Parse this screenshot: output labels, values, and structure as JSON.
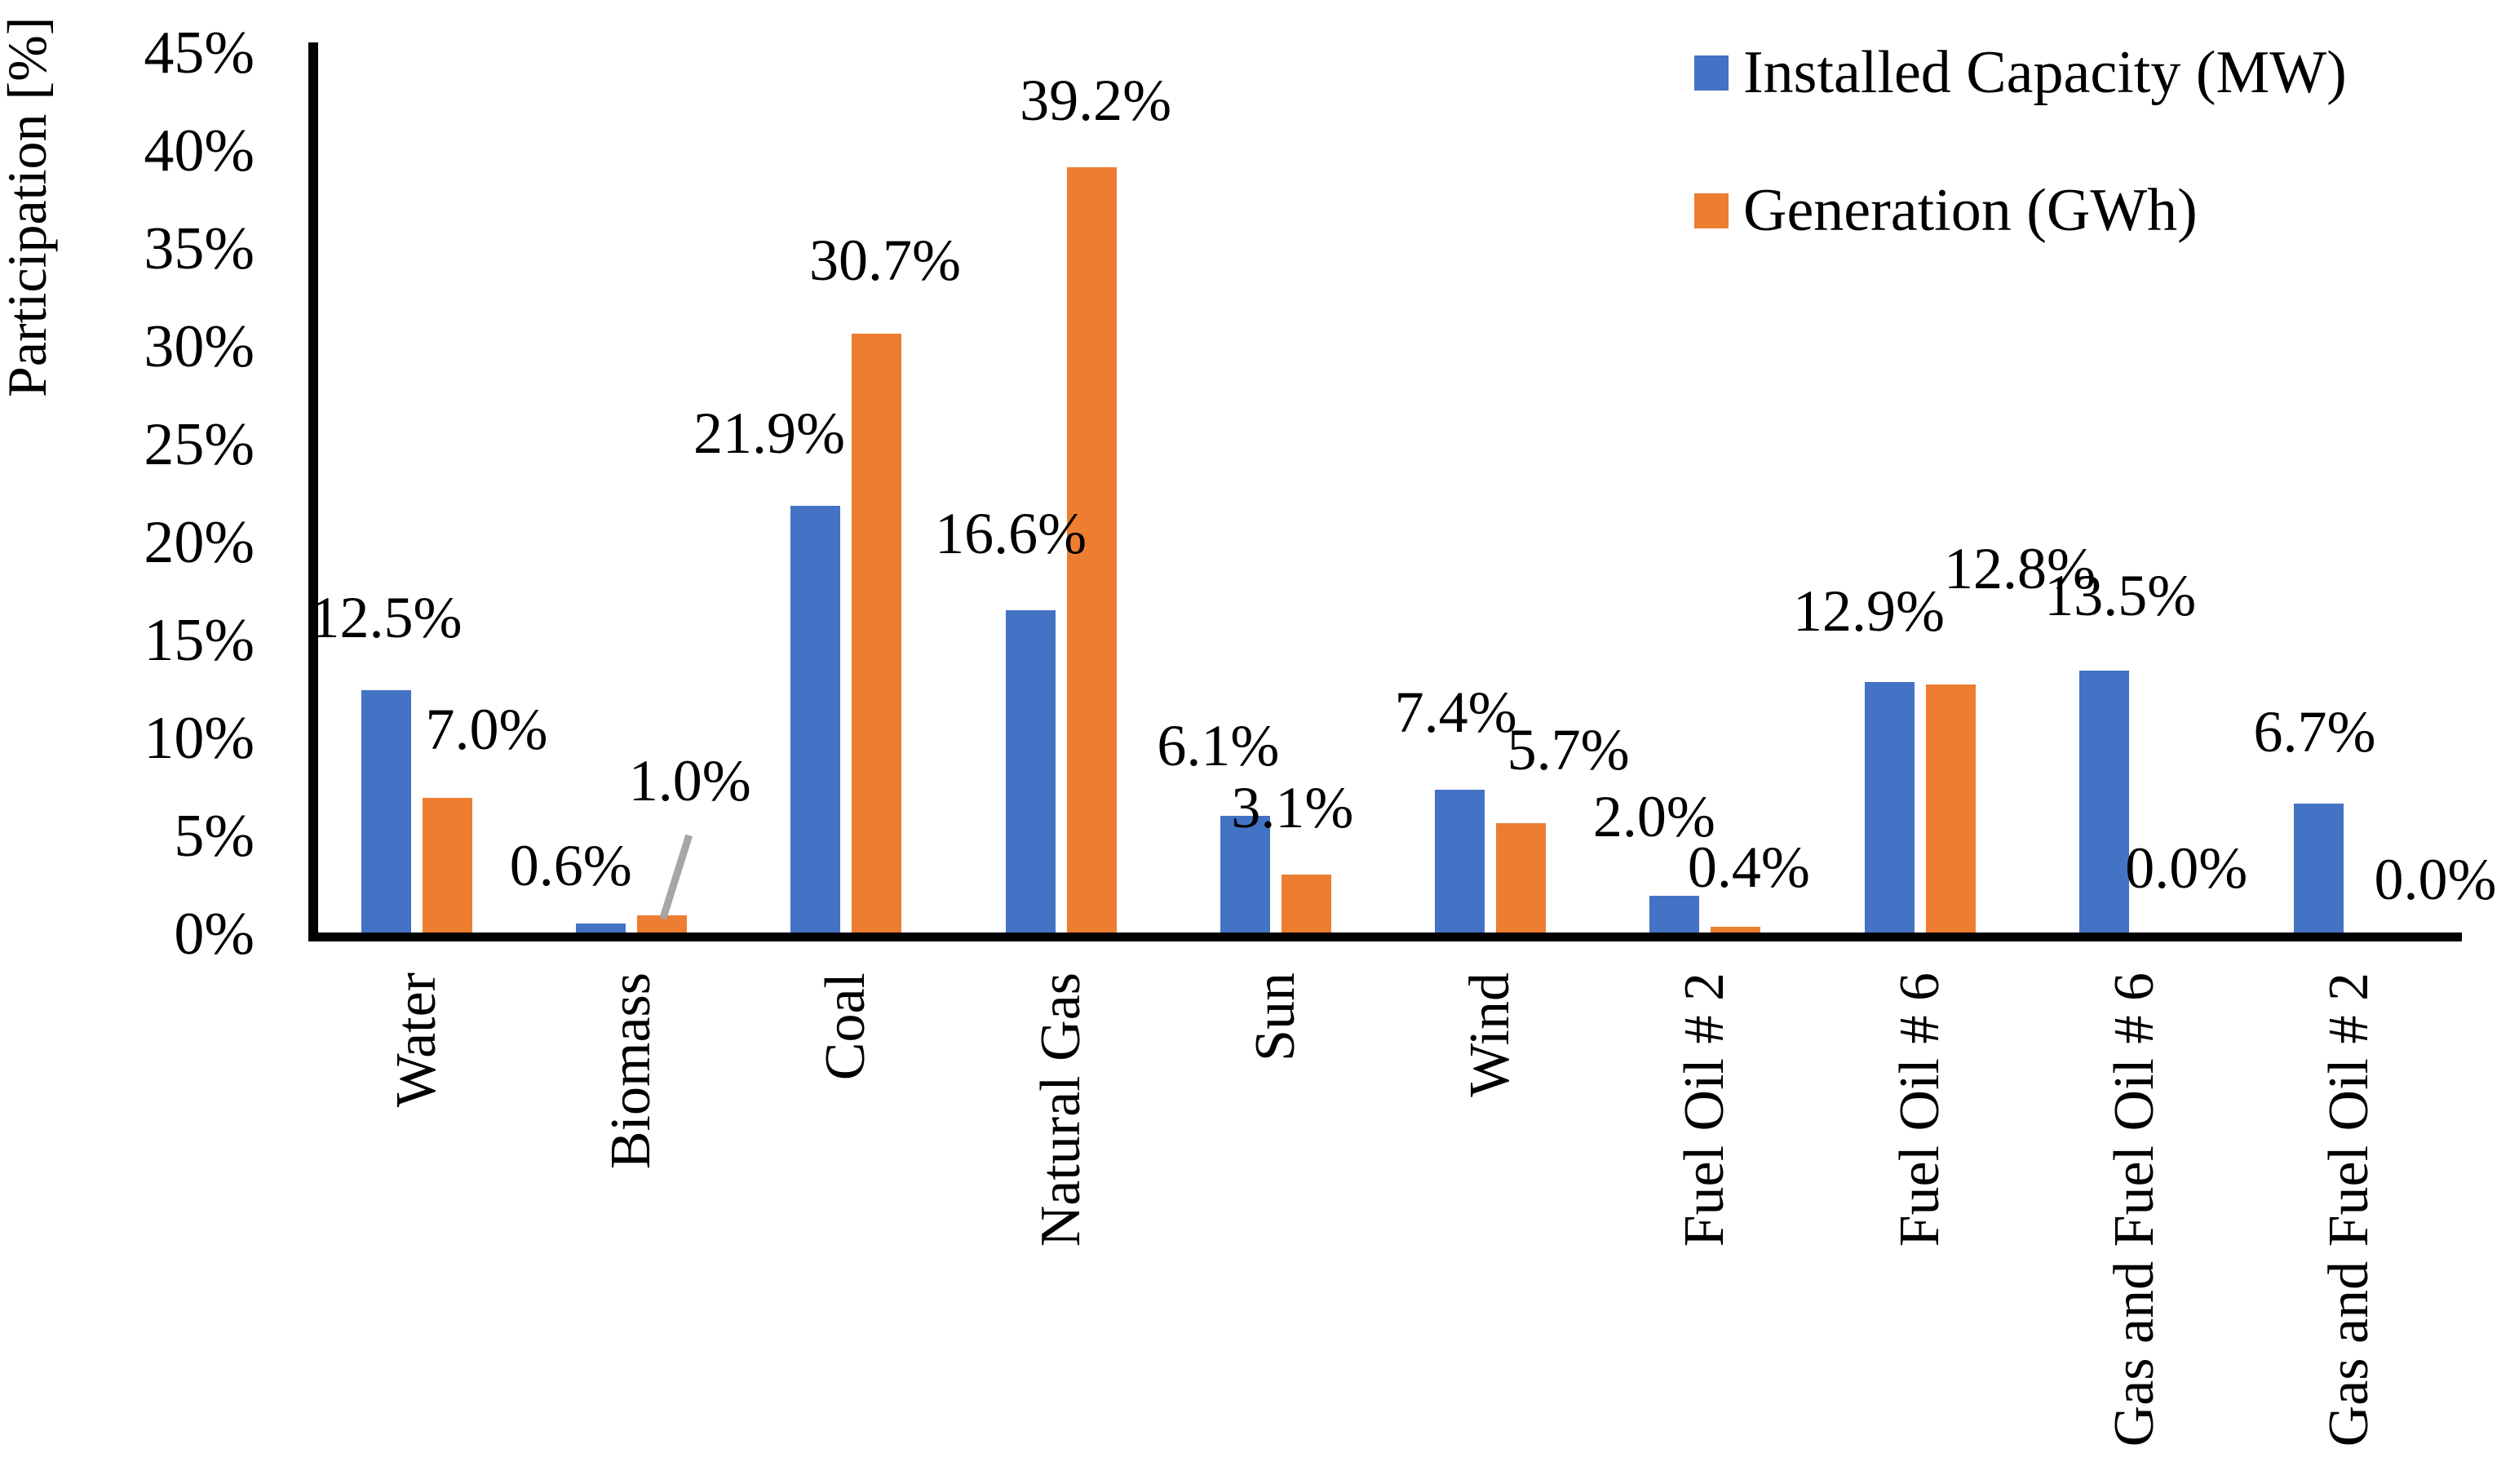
{
  "chart_data": {
    "type": "bar",
    "title": "",
    "xlabel": "",
    "ylabel": "Participation [%]",
    "categories": [
      "Water",
      "Biomass",
      "Coal",
      "Natural Gas",
      "Sun",
      "Wind",
      "Fuel Oil # 2",
      "Fuel Oil # 6",
      "Gas and Fuel Oil # 6",
      "Gas and Fuel Oil # 2"
    ],
    "series": [
      {
        "name": "Installed Capacity (MW)",
        "color": "#4472C4",
        "values": [
          12.5,
          0.6,
          21.9,
          16.6,
          6.1,
          7.4,
          2.0,
          12.9,
          13.5,
          6.7
        ],
        "data_labels": [
          "12.5%",
          "0.6%",
          "21.9%",
          "16.6%",
          "6.1%",
          "7.4%",
          "2.0%",
          "12.9%",
          "13.5%",
          "6.7%"
        ],
        "label_offsets": [
          [
            0,
            -7
          ],
          [
            -37,
            11
          ],
          [
            -57,
            -7
          ],
          [
            -24,
            -12
          ],
          [
            -33,
            -4
          ],
          [
            -5,
            -13
          ],
          [
            -25,
            -15
          ],
          [
            -25,
            -5
          ],
          [
            20,
            -10
          ],
          [
            -5,
            -6
          ]
        ]
      },
      {
        "name": "Generation (GWh)",
        "color": "#ED7D31",
        "values": [
          7.0,
          1.0,
          30.7,
          39.2,
          3.1,
          5.7,
          0.4,
          12.8,
          0.0,
          0.0
        ],
        "data_labels": [
          "7.0%",
          "1.0%",
          "30.7%",
          "39.2%",
          "3.1%",
          "5.7%",
          "0.4%",
          "12.8%",
          "0.0%",
          "0.0%"
        ],
        "label_offsets": [
          [
            48,
            -2
          ],
          [
            34,
            -83
          ],
          [
            10,
            -8
          ],
          [
            5,
            0
          ],
          [
            -17,
            0
          ],
          [
            58,
            -8
          ],
          [
            16,
            9
          ],
          [
            85,
            -60
          ],
          [
            26,
            0
          ],
          [
            68,
            14
          ]
        ]
      }
    ],
    "y_axis": {
      "min": 0,
      "max": 45,
      "step": 5,
      "tick_labels": [
        "0%",
        "5%",
        "10%",
        "15%",
        "20%",
        "25%",
        "30%",
        "35%",
        "40%",
        "45%"
      ]
    },
    "x_axis": {
      "tick_label_rotation_deg": -90
    },
    "grid": false,
    "legend_position": "top-right",
    "axis_color": "#000000",
    "background_color": "#FFFFFF",
    "annotations": {
      "leader_line": {
        "category": "Biomass",
        "series": "Generation (GWh)",
        "label": "1.0%",
        "color": "#A6A6A6"
      }
    }
  },
  "legend": {
    "items": [
      {
        "label": "Installed Capacity (MW)",
        "color": "#4472C4"
      },
      {
        "label": "Generation (GWh)",
        "color": "#ED7D31"
      }
    ]
  }
}
